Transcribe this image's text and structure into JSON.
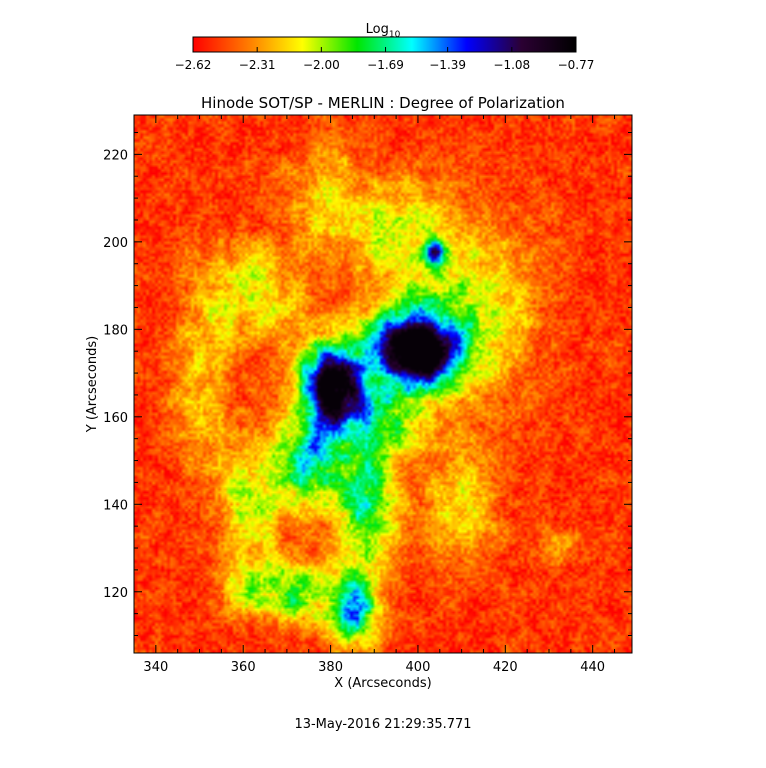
{
  "chart_data": {
    "type": "heatmap",
    "title": "Hinode SOT/SP - MERLIN : Degree of Polarization",
    "xlabel": "X (Arcseconds)",
    "ylabel": "Y (Arcseconds)",
    "xlim": [
      335,
      449
    ],
    "ylim": [
      106,
      229
    ],
    "x_ticks": [
      340,
      360,
      380,
      400,
      420,
      440
    ],
    "y_ticks": [
      120,
      140,
      160,
      180,
      200,
      220
    ],
    "x_tick_labels": [
      "340",
      "360",
      "380",
      "400",
      "420",
      "440"
    ],
    "y_tick_labels": [
      "120",
      "140",
      "160",
      "180",
      "200",
      "220"
    ],
    "colorbar": {
      "label_base": "Log",
      "label_sub": "10",
      "range": [
        -2.62,
        -0.77
      ],
      "ticks": [
        -2.62,
        -2.31,
        -2.0,
        -1.69,
        -1.39,
        -1.08,
        -0.77
      ],
      "tick_labels": [
        "−2.62",
        "−2.31",
        "−2.00",
        "−1.69",
        "−1.39",
        "−1.08",
        "−0.77"
      ],
      "colormap": [
        "#ff0000",
        "#ff7a00",
        "#ffff00",
        "#00e600",
        "#00ffff",
        "#0000ff",
        "#2b0033",
        "#000000"
      ]
    },
    "features": [
      {
        "x": 380,
        "y": 167,
        "sx": 5,
        "sy": 6.5,
        "amp": 1.8
      },
      {
        "x": 399,
        "y": 175,
        "sx": 7,
        "sy": 5.5,
        "amp": 1.9
      },
      {
        "x": 404,
        "y": 198,
        "sx": 1.5,
        "sy": 1.8,
        "amp": 0.9
      },
      {
        "x": 375,
        "y": 150,
        "sx": 5,
        "sy": 7,
        "amp": 0.9
      },
      {
        "x": 388,
        "y": 140,
        "sx": 5,
        "sy": 12,
        "amp": 0.75
      },
      {
        "x": 372,
        "y": 120,
        "sx": 6,
        "sy": 5,
        "amp": 0.65
      },
      {
        "x": 385,
        "y": 115,
        "sx": 4,
        "sy": 5,
        "amp": 0.9
      },
      {
        "x": 362,
        "y": 140,
        "sx": 5,
        "sy": 10,
        "amp": 0.5
      },
      {
        "x": 392,
        "y": 160,
        "sx": 6,
        "sy": 6,
        "amp": 0.55
      },
      {
        "x": 362,
        "y": 188,
        "sx": 8,
        "sy": 8,
        "amp": 0.45
      },
      {
        "x": 392,
        "y": 205,
        "sx": 8,
        "sy": 7,
        "amp": 0.35
      },
      {
        "x": 408,
        "y": 185,
        "sx": 12,
        "sy": 14,
        "amp": 0.55
      },
      {
        "x": 350,
        "y": 165,
        "sx": 5,
        "sy": 14,
        "amp": 0.3
      },
      {
        "x": 410,
        "y": 140,
        "sx": 6,
        "sy": 10,
        "amp": 0.35
      },
      {
        "x": 378,
        "y": 212,
        "sx": 6,
        "sy": 8,
        "amp": 0.3
      },
      {
        "x": 360,
        "y": 120,
        "sx": 4,
        "sy": 4,
        "amp": 0.35
      },
      {
        "x": 432,
        "y": 130,
        "sx": 3,
        "sy": 3,
        "amp": 0.3
      }
    ]
  },
  "timestamp": "13-May-2016 21:29:35.771"
}
